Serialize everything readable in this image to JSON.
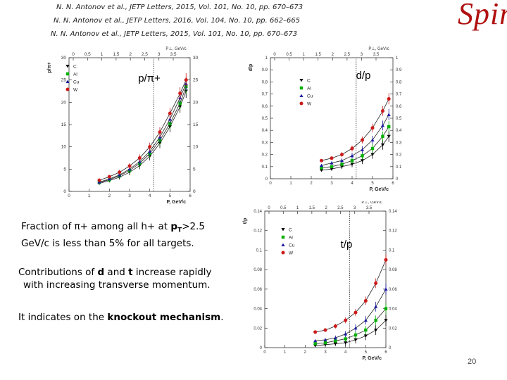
{
  "references": [
    "N. N. Antonov et al., JETP Letters, 2015, Vol. 101, No. 10, pp. 670–673",
    "N. N. Antonov et al., JETP Letters, 2016, Vol. 104, No. 10, pp. 662–665",
    "N. N. Antonov et al., JETP Letters, 2015, Vol. 101, No. 10, pp. 670–673"
  ],
  "logo": "Spin",
  "note1": {
    "line1": "Fraction of π+ among  all  h+ at  ",
    "pt_bold": "p",
    "pt_sub": "T",
    "line1_tail": ">2.5",
    "line2": "GeV/c  is less than   5% for all targets."
  },
  "note2": {
    "line1_a": "Contributions of ",
    "d": "d",
    "and": " and  ",
    "t": "t",
    "line1_b": "  increase rapidly",
    "line2": "with increasing transverse momentum."
  },
  "note3": {
    "a": "It indicates on the ",
    "b": "knockout mechanism",
    "c": "."
  },
  "page_number": "20",
  "colors": {
    "C": "#000000",
    "Al": "#00b000",
    "Cu": "#1a1aa0",
    "W": "#cc1a1a"
  },
  "chart_data": [
    {
      "type": "scatter",
      "title": "p/π+",
      "ylabel": "p/π+",
      "xlabel": "P, GeV/c",
      "top_axis_label": "P⊥, GeV/c",
      "xlim": [
        0,
        6
      ],
      "ylim": [
        0,
        30
      ],
      "x_ticks": [
        "0",
        "1",
        "2",
        "3",
        "4",
        "5",
        "6"
      ],
      "y_ticks": [
        "0",
        "5",
        "10",
        "15",
        "20",
        "25",
        "30"
      ],
      "top_ticks": [
        "0",
        "0.5",
        "1",
        "1.5",
        "2",
        "2.5",
        "3",
        "3.5"
      ],
      "cut_x": 4.2,
      "legend": [
        "C",
        "Al",
        "Cu",
        "W"
      ],
      "series": [
        {
          "name": "C",
          "x": [
            1.5,
            2.0,
            2.5,
            3.0,
            3.5,
            4.0,
            4.5,
            5.0,
            5.5,
            5.8
          ],
          "y": [
            1.8,
            2.4,
            3.2,
            4.3,
            5.8,
            7.9,
            10.8,
            14.5,
            19.0,
            22.5
          ]
        },
        {
          "name": "Al",
          "x": [
            1.5,
            2.0,
            2.5,
            3.0,
            3.5,
            4.0,
            4.5,
            5.0,
            5.5,
            5.8
          ],
          "y": [
            2.0,
            2.6,
            3.5,
            4.7,
            6.3,
            8.5,
            11.5,
            15.2,
            19.8,
            23.5
          ]
        },
        {
          "name": "Cu",
          "x": [
            1.5,
            2.0,
            2.5,
            3.0,
            3.5,
            4.0,
            4.5,
            5.0,
            5.5,
            5.8
          ],
          "y": [
            2.1,
            2.8,
            3.7,
            5.0,
            6.7,
            9.0,
            12.2,
            16.2,
            21.0,
            24.2
          ]
        },
        {
          "name": "W",
          "x": [
            1.5,
            2.0,
            2.5,
            3.0,
            3.5,
            4.0,
            4.5,
            5.0,
            5.5,
            5.8
          ],
          "y": [
            2.5,
            3.3,
            4.3,
            5.7,
            7.5,
            10.0,
            13.3,
            17.5,
            22.0,
            25.0
          ]
        }
      ]
    },
    {
      "type": "scatter",
      "title": "d/p",
      "ylabel": "d/p",
      "xlabel": "P, GeV/c",
      "top_axis_label": "P⊥, GeV/c",
      "xlim": [
        0,
        6
      ],
      "ylim": [
        0,
        1
      ],
      "x_ticks": [
        "0",
        "1",
        "2",
        "3",
        "4",
        "5",
        "6"
      ],
      "y_ticks": [
        "0",
        "0.1",
        "0.2",
        "0.3",
        "0.4",
        "0.5",
        "0.6",
        "0.7",
        "0.8",
        "0.9",
        "1"
      ],
      "top_ticks": [
        "0",
        "0.5",
        "1",
        "1.5",
        "2",
        "2.5",
        "3",
        "3.5"
      ],
      "cut_x": 4.2,
      "legend": [
        "C",
        "Al",
        "Cu",
        "W"
      ],
      "series": [
        {
          "name": "C",
          "x": [
            2.5,
            3.0,
            3.5,
            4.0,
            4.5,
            5.0,
            5.5,
            5.8
          ],
          "y": [
            0.07,
            0.08,
            0.1,
            0.12,
            0.15,
            0.2,
            0.28,
            0.35
          ]
        },
        {
          "name": "Al",
          "x": [
            2.5,
            3.0,
            3.5,
            4.0,
            4.5,
            5.0,
            5.5,
            5.8
          ],
          "y": [
            0.09,
            0.1,
            0.12,
            0.15,
            0.19,
            0.25,
            0.35,
            0.43
          ]
        },
        {
          "name": "Cu",
          "x": [
            2.5,
            3.0,
            3.5,
            4.0,
            4.5,
            5.0,
            5.5,
            5.8
          ],
          "y": [
            0.11,
            0.13,
            0.15,
            0.19,
            0.24,
            0.32,
            0.44,
            0.53
          ]
        },
        {
          "name": "W",
          "x": [
            2.5,
            3.0,
            3.5,
            4.0,
            4.5,
            5.0,
            5.5,
            5.8
          ],
          "y": [
            0.15,
            0.17,
            0.2,
            0.25,
            0.32,
            0.42,
            0.56,
            0.66
          ]
        }
      ]
    },
    {
      "type": "scatter",
      "title": "t/p",
      "ylabel": "t/p",
      "xlabel": "P, GeV/c",
      "top_axis_label": "P⊥, GeV/c",
      "xlim": [
        0,
        6
      ],
      "ylim": [
        0,
        0.14
      ],
      "x_ticks": [
        "0",
        "1",
        "2",
        "3",
        "4",
        "5",
        "6"
      ],
      "y_ticks": [
        "0",
        "0.02",
        "0.04",
        "0.06",
        "0.08",
        "0.1",
        "0.12",
        "0.14"
      ],
      "top_ticks": [
        "0",
        "0.5",
        "1",
        "1.5",
        "2",
        "2.5",
        "3",
        "3.5"
      ],
      "cut_x": 4.2,
      "legend": [
        "C",
        "Al",
        "Cu",
        "W"
      ],
      "series": [
        {
          "name": "C",
          "x": [
            2.5,
            3.0,
            3.5,
            4.0,
            4.5,
            5.0,
            5.5,
            6.0
          ],
          "y": [
            0.002,
            0.003,
            0.004,
            0.005,
            0.008,
            0.012,
            0.018,
            0.028
          ]
        },
        {
          "name": "Al",
          "x": [
            2.5,
            3.0,
            3.5,
            4.0,
            4.5,
            5.0,
            5.5,
            6.0
          ],
          "y": [
            0.004,
            0.005,
            0.007,
            0.009,
            0.013,
            0.018,
            0.028,
            0.04
          ]
        },
        {
          "name": "Cu",
          "x": [
            2.5,
            3.0,
            3.5,
            4.0,
            4.5,
            5.0,
            5.5,
            6.0
          ],
          "y": [
            0.007,
            0.008,
            0.01,
            0.014,
            0.02,
            0.028,
            0.042,
            0.06
          ]
        },
        {
          "name": "W",
          "x": [
            2.5,
            3.0,
            3.5,
            4.0,
            4.5,
            5.0,
            5.5,
            6.0
          ],
          "y": [
            0.016,
            0.018,
            0.022,
            0.028,
            0.036,
            0.048,
            0.066,
            0.09
          ]
        }
      ]
    }
  ]
}
